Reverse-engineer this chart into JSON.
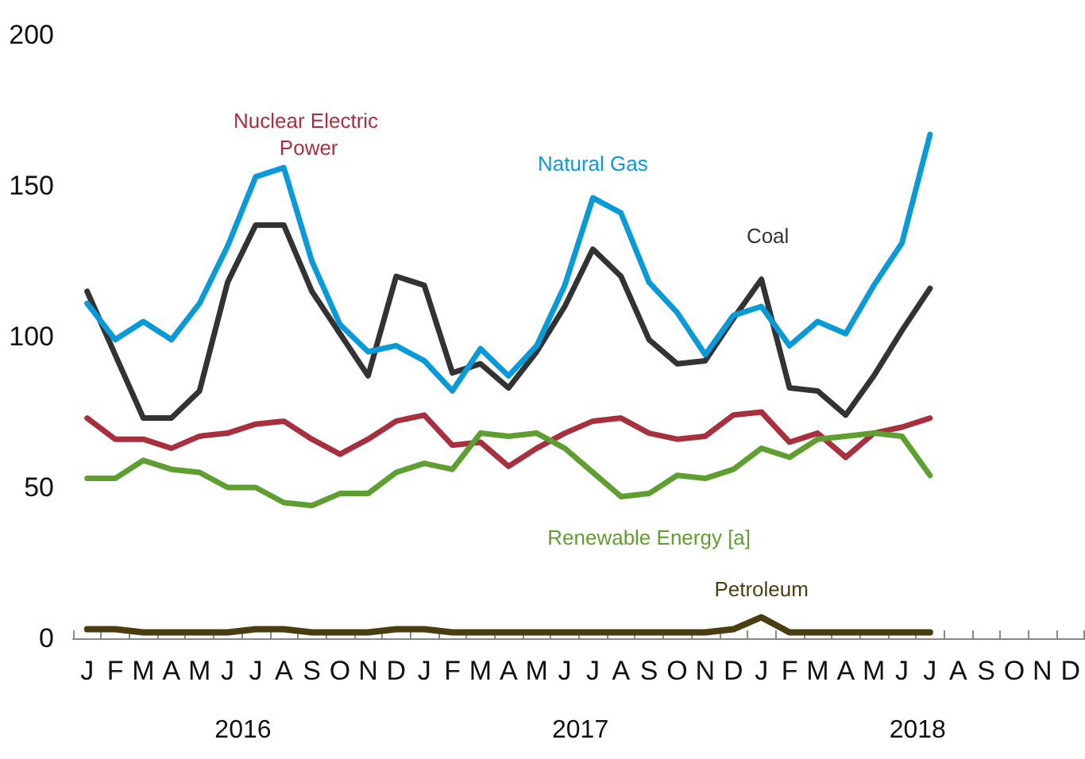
{
  "chart_data": {
    "type": "line",
    "categories": [
      "J",
      "F",
      "M",
      "A",
      "M",
      "J",
      "J",
      "A",
      "S",
      "O",
      "N",
      "D",
      "J",
      "F",
      "M",
      "A",
      "M",
      "J",
      "J",
      "A",
      "S",
      "O",
      "N",
      "D",
      "J",
      "F",
      "M",
      "A",
      "M",
      "J",
      "J",
      "A",
      "S",
      "O",
      "N",
      "D"
    ],
    "series": [
      {
        "name": "Coal",
        "color": "#333333",
        "values": [
          115,
          94,
          73,
          73,
          82,
          118,
          137,
          137,
          115,
          101,
          87,
          120,
          117,
          88,
          91,
          83,
          95,
          110,
          129,
          120,
          99,
          91,
          92,
          106,
          119,
          83,
          82,
          74,
          87,
          102,
          116,
          null,
          null,
          null,
          null,
          null
        ]
      },
      {
        "name": "Natural Gas",
        "color": "#0a9ad8",
        "values": [
          111,
          99,
          105,
          99,
          111,
          130,
          153,
          156,
          125,
          104,
          95,
          97,
          92,
          82,
          96,
          87,
          97,
          117,
          146,
          141,
          118,
          108,
          94,
          107,
          110,
          97,
          105,
          101,
          117,
          131,
          167,
          null,
          null,
          null,
          null,
          null
        ]
      },
      {
        "name": "Nuclear Electric Power",
        "color": "#a7303f",
        "values": [
          73,
          66,
          66,
          63,
          67,
          68,
          71,
          72,
          66,
          61,
          66,
          72,
          74,
          64,
          65,
          57,
          63,
          68,
          72,
          73,
          68,
          66,
          67,
          74,
          75,
          65,
          68,
          60,
          68,
          70,
          73,
          null,
          null,
          null,
          null,
          null
        ]
      },
      {
        "name": "Renewable Energy [a]",
        "color": "#5f9e30",
        "values": [
          53,
          53,
          59,
          56,
          55,
          50,
          50,
          45,
          44,
          48,
          48,
          55,
          58,
          56,
          68,
          67,
          68,
          63,
          55,
          47,
          48,
          54,
          53,
          56,
          63,
          60,
          66,
          67,
          68,
          67,
          54,
          null,
          null,
          null,
          null,
          null
        ]
      },
      {
        "name": "Petroleum",
        "color": "#4a3d10",
        "values": [
          3,
          3,
          2,
          2,
          2,
          2,
          3,
          3,
          2,
          2,
          2,
          3,
          3,
          2,
          2,
          2,
          2,
          2,
          2,
          2,
          2,
          2,
          2,
          3,
          7,
          2,
          2,
          2,
          2,
          2,
          2,
          null,
          null,
          null,
          null,
          null
        ]
      }
    ],
    "ylim": [
      0,
      200
    ],
    "yticks": [
      0,
      50,
      100,
      150,
      200
    ],
    "annotations": [
      "2016",
      "2017",
      "2018"
    ],
    "grid": false,
    "legend": false,
    "marker": "none",
    "line_style": "solid"
  }
}
